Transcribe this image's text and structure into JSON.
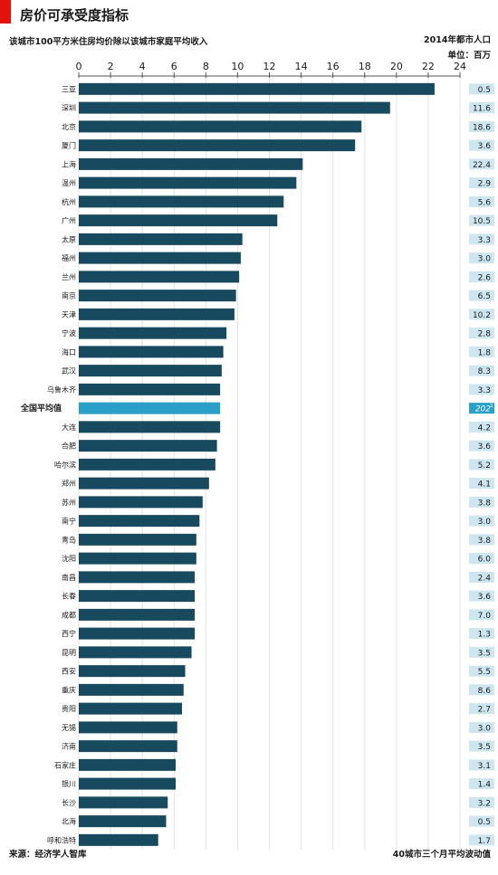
{
  "title": "房价可承受度指标",
  "subtitle": "该城市100平方米住房均价除以该城市家庭平均收入",
  "population_header": {
    "line1": "2014年都市人口",
    "line2": "单位：百万"
  },
  "source": "来源：经济学人智库",
  "footnote": "40城市三个月平均波动值",
  "colors": {
    "bar": "#174a5e",
    "highlight": "#2a9fc7",
    "pop_box": "#cde6f0",
    "accent": "#e3120b"
  },
  "chart_data": {
    "type": "bar",
    "orientation": "horizontal",
    "xlim": [
      0,
      24
    ],
    "xticks": [
      0,
      2,
      4,
      6,
      8,
      10,
      12,
      14,
      16,
      18,
      20,
      22,
      24
    ],
    "grid": true,
    "categories": [
      "三亚",
      "深圳",
      "北京",
      "厦门",
      "上海",
      "温州",
      "杭州",
      "广州",
      "太原",
      "福州",
      "兰州",
      "南京",
      "天津",
      "宁波",
      "海口",
      "武汉",
      "乌鲁木齐",
      "全国平均值",
      "大连",
      "合肥",
      "哈尔滨",
      "郑州",
      "苏州",
      "南宁",
      "青岛",
      "沈阳",
      "南昌",
      "长春",
      "成都",
      "西宁",
      "昆明",
      "西安",
      "重庆",
      "贵阳",
      "无锡",
      "济南",
      "石家庄",
      "银川",
      "长沙",
      "北海",
      "呼和浩特"
    ],
    "values": [
      22.4,
      19.6,
      17.8,
      17.4,
      14.1,
      13.7,
      12.9,
      12.5,
      10.3,
      10.2,
      10.1,
      9.9,
      9.8,
      9.3,
      9.1,
      9.0,
      8.9,
      8.9,
      8.9,
      8.7,
      8.6,
      8.2,
      7.8,
      7.6,
      7.4,
      7.4,
      7.3,
      7.3,
      7.3,
      7.3,
      7.1,
      6.7,
      6.6,
      6.5,
      6.2,
      6.2,
      6.1,
      6.1,
      5.6,
      5.5,
      5.0
    ],
    "population": [
      "0.5",
      "11.6",
      "18.6",
      "3.6",
      "22.4",
      "2.9",
      "5.6",
      "10.5",
      "3.3",
      "3.0",
      "2.6",
      "6.5",
      "10.2",
      "2.8",
      "1.8",
      "8.3",
      "3.3",
      "202",
      "4.2",
      "3.6",
      "5.2",
      "4.1",
      "3.8",
      "3.0",
      "3.8",
      "6.0",
      "2.4",
      "3.6",
      "7.0",
      "1.3",
      "3.5",
      "5.5",
      "8.6",
      "2.7",
      "3.0",
      "3.5",
      "3.1",
      "1.4",
      "3.2",
      "0.5",
      "1.7"
    ],
    "highlight_category": "全国平均值",
    "highlight_population_superscript": "1"
  }
}
